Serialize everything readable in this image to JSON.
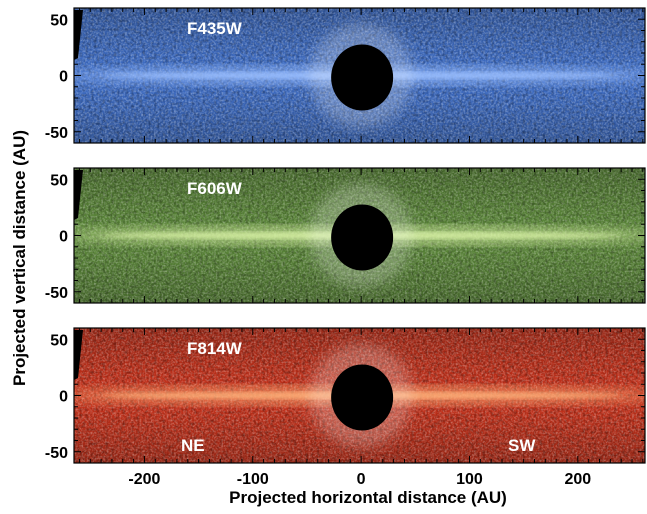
{
  "figure": {
    "y_axis_title": "Projected vertical distance (AU)",
    "x_axis_title": "Projected horizontal distance (AU)",
    "x_ticks": [
      "-200",
      "-100",
      "0",
      "100",
      "200"
    ],
    "y_ticks": [
      "50",
      "0",
      "-50"
    ],
    "x_range_au": [
      -265,
      262
    ],
    "y_range_au": [
      -60,
      60
    ],
    "panels": [
      {
        "label": "F435W",
        "color": "#3f6fc9",
        "glow": "#9cc0ff",
        "noise": "#b8c7e6"
      },
      {
        "label": "F606W",
        "color": "#5d8a3a",
        "glow": "#d9f2a6",
        "noise": "#c9d6b3"
      },
      {
        "label": "F814W",
        "color": "#c9321b",
        "glow": "#ffb27a",
        "noise": "#f0c4b3"
      }
    ],
    "direction_labels": {
      "left": "NE",
      "right": "SW"
    },
    "occulter_color": "#000000"
  }
}
